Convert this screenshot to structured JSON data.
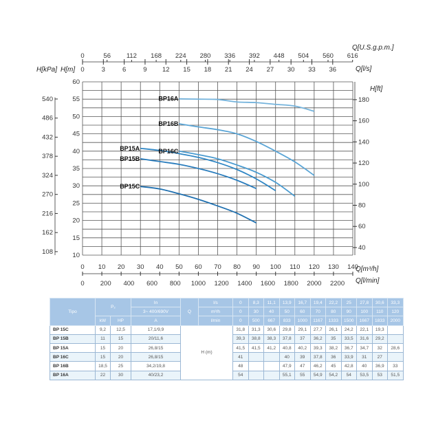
{
  "chart_data": {
    "type": "line",
    "x": [
      0,
      10,
      20,
      30,
      40,
      50,
      60,
      70,
      80,
      90,
      100,
      110,
      120
    ],
    "xlabel": "Q[m³/h]",
    "xlim": [
      0,
      140
    ],
    "xticks": [
      0,
      10,
      20,
      30,
      40,
      50,
      60,
      70,
      80,
      90,
      100,
      110,
      120,
      130,
      140
    ],
    "ylabel_left_m": "H[m]",
    "ylim": [
      10,
      60
    ],
    "yticks_m": [
      10,
      15,
      20,
      25,
      30,
      35,
      40,
      45,
      50,
      55,
      60
    ],
    "ylabel_kpa": "H[kPa]",
    "yticks_kpa": [
      108,
      162,
      216,
      270,
      324,
      378,
      432,
      486,
      540
    ],
    "ylabel_ft": "H[ft]",
    "yticks_ft": [
      40,
      60,
      80,
      100,
      120,
      140,
      160,
      180
    ],
    "x2label_lmin": "Q[l/min]",
    "xticks_lmin": [
      0,
      200,
      400,
      600,
      800,
      1000,
      1200,
      1400,
      1600,
      1800,
      2000,
      2200
    ],
    "x3label_ls": "Q[l/s]",
    "xticks_ls": [
      0,
      3,
      6,
      9,
      12,
      15,
      18,
      21,
      24,
      27,
      30,
      33,
      36
    ],
    "x4label_gpm": "Q[U.S.g.p.m.]",
    "xticks_gpm": [
      0,
      56,
      112,
      168,
      224,
      280,
      336,
      392,
      448,
      504,
      560,
      616
    ],
    "grid": true,
    "series": [
      {
        "name": "BP16A",
        "color": "#74b3dc",
        "start": 50,
        "values": [
          54,
          null,
          null,
          null,
          null,
          55.1,
          55,
          54.9,
          54.2,
          54,
          53.5,
          53,
          51.5
        ]
      },
      {
        "name": "BP16B",
        "color": "#5aa5d6",
        "start": 50,
        "values": [
          48,
          null,
          null,
          null,
          null,
          47.9,
          47,
          46.2,
          45,
          42.8,
          40,
          36.9,
          33
        ]
      },
      {
        "name": "BP15A",
        "color": "#2f86c4",
        "start": 30,
        "values": [
          41.5,
          41.5,
          41.2,
          40.8,
          40.2,
          39.3,
          38.2,
          36.7,
          34.7,
          32,
          28.6,
          null,
          null
        ]
      },
      {
        "name": "BP16C",
        "color": "#4a9bd0",
        "start": 50,
        "values": [
          41,
          null,
          null,
          null,
          null,
          40,
          39,
          37.8,
          36,
          33.9,
          31,
          27,
          null
        ]
      },
      {
        "name": "BP15B",
        "color": "#2a7dbd",
        "start": 30,
        "values": [
          39.3,
          38.8,
          38.3,
          37.8,
          37,
          36.2,
          35,
          33.5,
          31.6,
          29.2,
          null,
          null,
          null
        ]
      },
      {
        "name": "BP15C",
        "color": "#1f70b0",
        "start": 30,
        "values": [
          31.8,
          31.3,
          30.6,
          29.8,
          29.1,
          27.7,
          26.1,
          24.2,
          22.1,
          19.3,
          null,
          null,
          null
        ]
      }
    ]
  },
  "table": {
    "h_type": "Tipo",
    "h_p2": "P₂",
    "h_in": "In",
    "h_voltage": "3~ 400/690V",
    "h_kw": "kW",
    "h_hp": "HP",
    "h_a": "A",
    "h_q": "Q",
    "u_ls": "l/s",
    "u_m3h": "m³/h",
    "u_lmin": "l/min",
    "ls": [
      "0",
      "8,3",
      "11,1",
      "13,9",
      "16,7",
      "19,4",
      "22,2",
      "25",
      "27,8",
      "30,6",
      "33,3"
    ],
    "m3h": [
      "0",
      "30",
      "40",
      "50",
      "60",
      "70",
      "80",
      "90",
      "100",
      "110",
      "120"
    ],
    "lmin": [
      "0",
      "500",
      "667",
      "833",
      "1000",
      "1167",
      "1333",
      "1500",
      "1667",
      "1833",
      "2000"
    ],
    "h_label": "H (m)",
    "rows": [
      {
        "type": "BP 15C",
        "kw": "9,2",
        "hp": "12,5",
        "a": "17,1/9,9",
        "h": [
          "31,8",
          "31,3",
          "30,6",
          "29,8",
          "29,1",
          "27,7",
          "26,1",
          "24,2",
          "22,1",
          "19,3",
          ""
        ]
      },
      {
        "type": "BP 15B",
        "kw": "11",
        "hp": "15",
        "a": "20/11,6",
        "h": [
          "39,3",
          "38,8",
          "38,3",
          "37,8",
          "37",
          "36,2",
          "35",
          "33,5",
          "31,6",
          "29,2",
          ""
        ]
      },
      {
        "type": "BP 15A",
        "kw": "15",
        "hp": "20",
        "a": "26,8/15",
        "h": [
          "41,5",
          "41,5",
          "41,2",
          "40,8",
          "40,2",
          "39,3",
          "38,2",
          "36,7",
          "34,7",
          "32",
          "28,6"
        ]
      },
      {
        "type": "BP 16C",
        "kw": "15",
        "hp": "20",
        "a": "26,8/15",
        "h": [
          "41",
          "",
          "",
          "40",
          "39",
          "37,8",
          "36",
          "33,9",
          "31",
          "27",
          ""
        ]
      },
      {
        "type": "BP 16B",
        "kw": "18,5",
        "hp": "25",
        "a": "34,2/19,8",
        "h": [
          "48",
          "",
          "",
          "47,9",
          "47",
          "46,2",
          "45",
          "42,8",
          "40",
          "36,9",
          "33"
        ]
      },
      {
        "type": "BP 16A",
        "kw": "22",
        "hp": "30",
        "a": "40/23,2",
        "h": [
          "54",
          "",
          "",
          "55,1",
          "55",
          "54,9",
          "54,2",
          "54",
          "53,5",
          "53",
          "51,5"
        ]
      }
    ]
  }
}
